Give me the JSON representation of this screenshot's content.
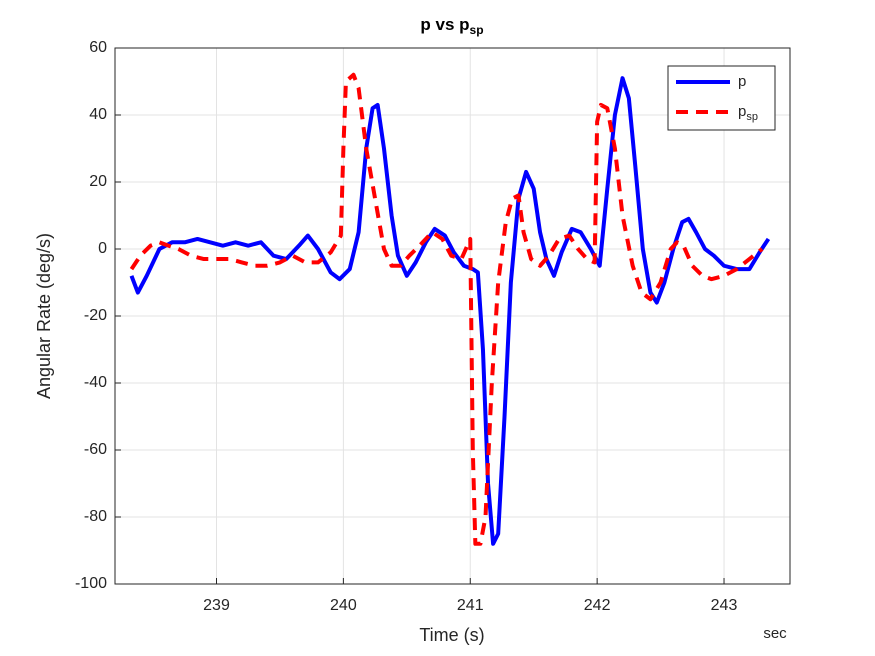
{
  "chart_data": {
    "type": "line",
    "title": {
      "main": "p vs p",
      "sub": "sp"
    },
    "x_label": "Time (s)",
    "y_label": "Angular Rate (deg/s)",
    "x_unit_label": "sec",
    "xlim": [
      238.2,
      243.52
    ],
    "xticks": [
      239,
      240,
      241,
      242,
      243
    ],
    "ylim": [
      -100,
      60
    ],
    "yticks": [
      -100,
      -80,
      -60,
      -40,
      -20,
      0,
      20,
      40,
      60
    ],
    "grid": true,
    "legend": "top-right",
    "series": [
      {
        "name": "p",
        "color": "#0000ff",
        "style": "solid",
        "x": [
          238.33,
          238.38,
          238.45,
          238.55,
          238.65,
          238.75,
          238.85,
          238.95,
          239.05,
          239.15,
          239.25,
          239.35,
          239.45,
          239.55,
          239.65,
          239.72,
          239.8,
          239.9,
          239.97,
          240.05,
          240.12,
          240.18,
          240.23,
          240.27,
          240.32,
          240.38,
          240.43,
          240.5,
          240.57,
          240.65,
          240.72,
          240.8,
          240.87,
          240.95,
          241.02,
          241.06,
          241.1,
          241.14,
          241.18,
          241.22,
          241.27,
          241.32,
          241.38,
          241.44,
          241.5,
          241.55,
          241.6,
          241.66,
          241.72,
          241.8,
          241.87,
          241.95,
          242.02,
          242.08,
          242.14,
          242.2,
          242.25,
          242.3,
          242.36,
          242.42,
          242.47,
          242.53,
          242.6,
          242.67,
          242.72,
          242.78,
          242.85,
          242.92,
          243.0,
          243.1,
          243.2,
          243.28,
          243.35
        ],
        "values": [
          -8,
          -13,
          -8,
          0,
          2,
          2,
          3,
          2,
          1,
          2,
          1,
          2,
          -2,
          -3,
          1,
          4,
          0,
          -7,
          -9,
          -6,
          5,
          30,
          42,
          43,
          30,
          10,
          -2,
          -8,
          -4,
          2,
          6,
          4,
          -1,
          -5,
          -6,
          -7,
          -30,
          -70,
          -88,
          -85,
          -50,
          -10,
          15,
          23,
          18,
          5,
          -3,
          -8,
          -1,
          6,
          5,
          0,
          -5,
          18,
          40,
          51,
          45,
          25,
          0,
          -13,
          -16,
          -10,
          0,
          8,
          9,
          5,
          0,
          -2,
          -5,
          -6,
          -6,
          -1,
          3
        ]
      },
      {
        "name": "p",
        "name_sub": "sp",
        "color": "#ff0000",
        "style": "dashed",
        "x": [
          238.33,
          238.4,
          238.48,
          238.55,
          238.62,
          238.7,
          238.8,
          238.9,
          239.0,
          239.1,
          239.2,
          239.3,
          239.4,
          239.5,
          239.6,
          239.7,
          239.8,
          239.9,
          239.98,
          240.0,
          240.02,
          240.08,
          240.12,
          240.18,
          240.25,
          240.32,
          240.38,
          240.45,
          240.52,
          240.6,
          240.7,
          240.78,
          240.85,
          240.93,
          241.0,
          241.02,
          241.04,
          241.08,
          241.12,
          241.17,
          241.22,
          241.28,
          241.33,
          241.38,
          241.42,
          241.48,
          241.55,
          241.62,
          241.7,
          241.78,
          241.85,
          241.92,
          241.98,
          242.0,
          242.03,
          242.08,
          242.14,
          242.2,
          242.28,
          242.35,
          242.42,
          242.5,
          242.58,
          242.63,
          242.68,
          242.75,
          242.83,
          242.9,
          243.0,
          243.1,
          243.2,
          243.3
        ],
        "values": [
          -6,
          -2,
          1,
          2,
          1,
          0,
          -2,
          -3,
          -3,
          -3,
          -4,
          -5,
          -5,
          -4,
          -2,
          -4,
          -4,
          -1,
          4,
          30,
          50,
          52,
          48,
          30,
          15,
          0,
          -5,
          -5,
          -2,
          1,
          5,
          3,
          -2,
          -3,
          3,
          -60,
          -88,
          -88,
          -80,
          -40,
          -10,
          8,
          15,
          16,
          5,
          -3,
          -5,
          -2,
          3,
          4,
          0,
          -3,
          -4,
          38,
          43,
          42,
          30,
          10,
          -5,
          -13,
          -15,
          -10,
          0,
          2,
          1,
          -5,
          -8,
          -9,
          -8,
          -6,
          -3,
          0
        ]
      }
    ]
  }
}
